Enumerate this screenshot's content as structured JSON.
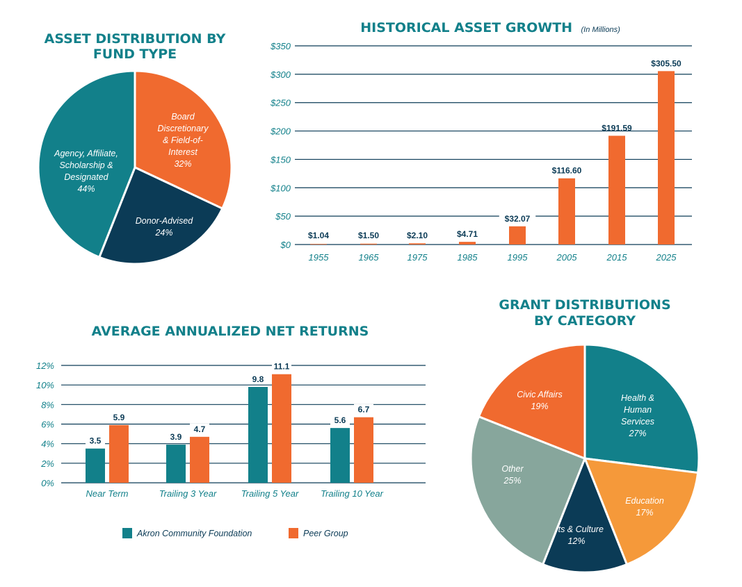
{
  "chart_data": [
    {
      "type": "pie",
      "title": "ASSET DISTRIBUTION BY FUND TYPE",
      "slices": [
        {
          "label": "Board Discretionary & Field-of-Interest",
          "lines": [
            "Board",
            "Discretionary",
            "& Field-of-",
            "Interest"
          ],
          "value": 32,
          "display": "32%",
          "color": "#f06a2f"
        },
        {
          "label": "Donor-Advised",
          "lines": [
            "Donor-Advised"
          ],
          "value": 24,
          "display": "24%",
          "color": "#0b3b56"
        },
        {
          "label": "Agency, Affiliate, Scholarship & Designated",
          "lines": [
            "Agency, Affiliate,",
            "Scholarship &",
            "Designated"
          ],
          "value": 44,
          "display": "44%",
          "color": "#12808a"
        }
      ]
    },
    {
      "type": "bar",
      "title": "HISTORICAL ASSET GROWTH",
      "subtitle": "(In Millions)",
      "categories": [
        "1955",
        "1965",
        "1975",
        "1985",
        "1995",
        "2005",
        "2015",
        "2025"
      ],
      "values": [
        1.04,
        1.5,
        2.1,
        4.71,
        32.07,
        116.6,
        191.59,
        305.5
      ],
      "data_labels": [
        "$1.04",
        "$1.50",
        "$2.10",
        "$4.71",
        "$32.07",
        "$116.60",
        "$191.59",
        "$305.50"
      ],
      "ylim": [
        0,
        350
      ],
      "yticks": [
        "$0",
        "$50",
        "$100",
        "$150",
        "$200",
        "$250",
        "$300",
        "$350"
      ],
      "grid": true,
      "color": "#f06a2f"
    },
    {
      "type": "bar",
      "title": "AVERAGE ANNUALIZED NET RETURNS",
      "categories": [
        "Near Term",
        "Trailing 3 Year",
        "Trailing 5 Year",
        "Trailing 10 Year"
      ],
      "series": [
        {
          "name": "Akron Community Foundation",
          "values": [
            3.5,
            3.9,
            9.8,
            5.6
          ],
          "labels": [
            "3.5",
            "3.9",
            "9.8",
            "5.6"
          ],
          "color": "#12808a"
        },
        {
          "name": "Peer Group",
          "values": [
            5.9,
            4.7,
            11.1,
            6.7
          ],
          "labels": [
            "5.9",
            "4.7",
            "11.1",
            "6.7"
          ],
          "color": "#f06a2f"
        }
      ],
      "ylim": [
        0,
        12
      ],
      "yticks": [
        "0%",
        "2%",
        "4%",
        "6%",
        "8%",
        "10%",
        "12%"
      ],
      "grid": true,
      "legend": "bottom"
    },
    {
      "type": "pie",
      "title": "GRANT DISTRIBUTIONS BY CATEGORY",
      "slices": [
        {
          "label": "Health & Human Services",
          "lines": [
            "Health &",
            "Human",
            "Services"
          ],
          "value": 27,
          "display": "27%",
          "color": "#12808a"
        },
        {
          "label": "Education",
          "lines": [
            "Education"
          ],
          "value": 17,
          "display": "17%",
          "color": "#f5993a"
        },
        {
          "label": "Arts & Culture",
          "lines": [
            "Arts & Culture"
          ],
          "value": 12,
          "display": "12%",
          "color": "#0b3b56"
        },
        {
          "label": "Other",
          "lines": [
            "Other"
          ],
          "value": 25,
          "display": "25%",
          "color": "#87a69c"
        },
        {
          "label": "Civic Affairs",
          "lines": [
            "Civic Affairs"
          ],
          "value": 19,
          "display": "19%",
          "color": "#f06a2f"
        }
      ]
    }
  ]
}
